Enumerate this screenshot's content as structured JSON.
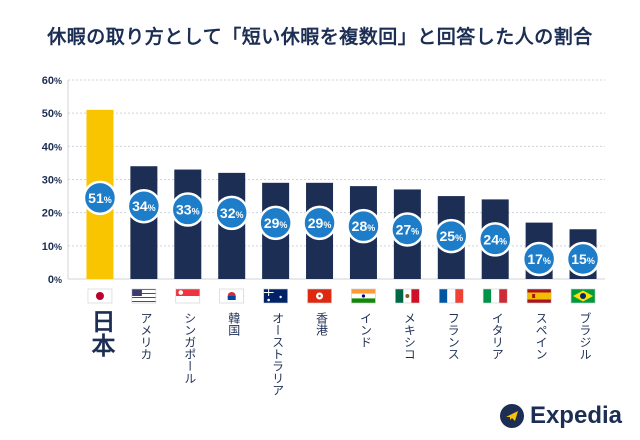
{
  "title": "休暇の取り方として「短い休暇を複数回」と回答した人の割合",
  "brand": {
    "name": "Expedia",
    "logo_icon": "plane-icon"
  },
  "colors": {
    "highlight": "#F9C400",
    "bar": "#1D2E54",
    "bubble": "#1E7DC8",
    "grid": "#cfd3da",
    "text": "#1d2e54"
  },
  "chart_data": {
    "type": "bar",
    "title": "休暇の取り方として「短い休暇を複数回」と回答した人の割合",
    "categories": [
      "日本",
      "アメリカ",
      "シンガポール",
      "韓国",
      "オーストラリア",
      "香港",
      "インド",
      "メキシコ",
      "フランス",
      "イタリア",
      "スペイン",
      "ブラジル"
    ],
    "values": [
      51,
      34,
      33,
      32,
      29,
      29,
      28,
      27,
      25,
      24,
      17,
      15
    ],
    "data_labels": [
      "51",
      "34",
      "33",
      "32",
      "29",
      "29",
      "28",
      "27",
      "25",
      "24",
      "17",
      "15"
    ],
    "unit": "%",
    "ylim": [
      0,
      60
    ],
    "yticks": [
      "0%",
      "10%",
      "20%",
      "30%",
      "40%",
      "50%",
      "60%"
    ],
    "grid": true,
    "highlight_category": "日本",
    "flags": [
      "flag-japan-icon",
      "flag-usa-icon",
      "flag-singapore-icon",
      "flag-korea-icon",
      "flag-australia-icon",
      "flag-hongkong-icon",
      "flag-india-icon",
      "flag-mexico-icon",
      "flag-france-icon",
      "flag-italy-icon",
      "flag-spain-icon",
      "flag-brazil-icon"
    ]
  }
}
